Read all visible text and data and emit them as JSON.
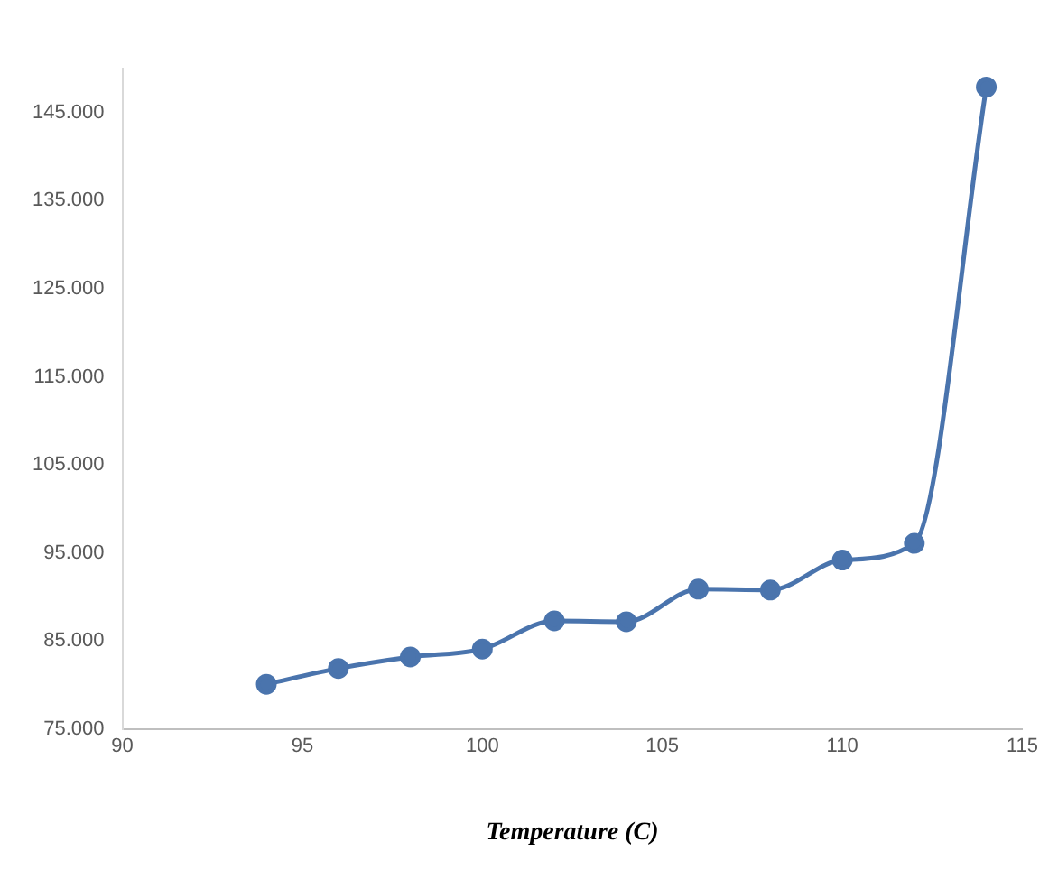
{
  "chart_data": {
    "type": "line",
    "xlabel": "Temperature (C)",
    "x": [
      94,
      96,
      98,
      100,
      102,
      104,
      106,
      108,
      110,
      112,
      114
    ],
    "series": [
      {
        "color": "#4a74ad",
        "values": [
          80100,
          81900,
          83200,
          84100,
          87300,
          87200,
          90900,
          90800,
          94200,
          96100,
          147900
        ]
      }
    ],
    "xlim": [
      90,
      115
    ],
    "xticks": [
      90,
      95,
      100,
      105,
      110,
      115
    ],
    "ylim": [
      75000,
      150000
    ],
    "yticks": [
      {
        "value": 75000,
        "label": "75.000"
      },
      {
        "value": 85000,
        "label": "85.000"
      },
      {
        "value": 95000,
        "label": "95.000"
      },
      {
        "value": 105000,
        "label": "105.000"
      },
      {
        "value": 115000,
        "label": "115.000"
      },
      {
        "value": 125000,
        "label": "125.000"
      },
      {
        "value": 135000,
        "label": "135.000"
      },
      {
        "value": 145000,
        "label": "145.000"
      }
    ],
    "grid": false,
    "legend": false,
    "marker": "circle",
    "line_style": "solid"
  }
}
